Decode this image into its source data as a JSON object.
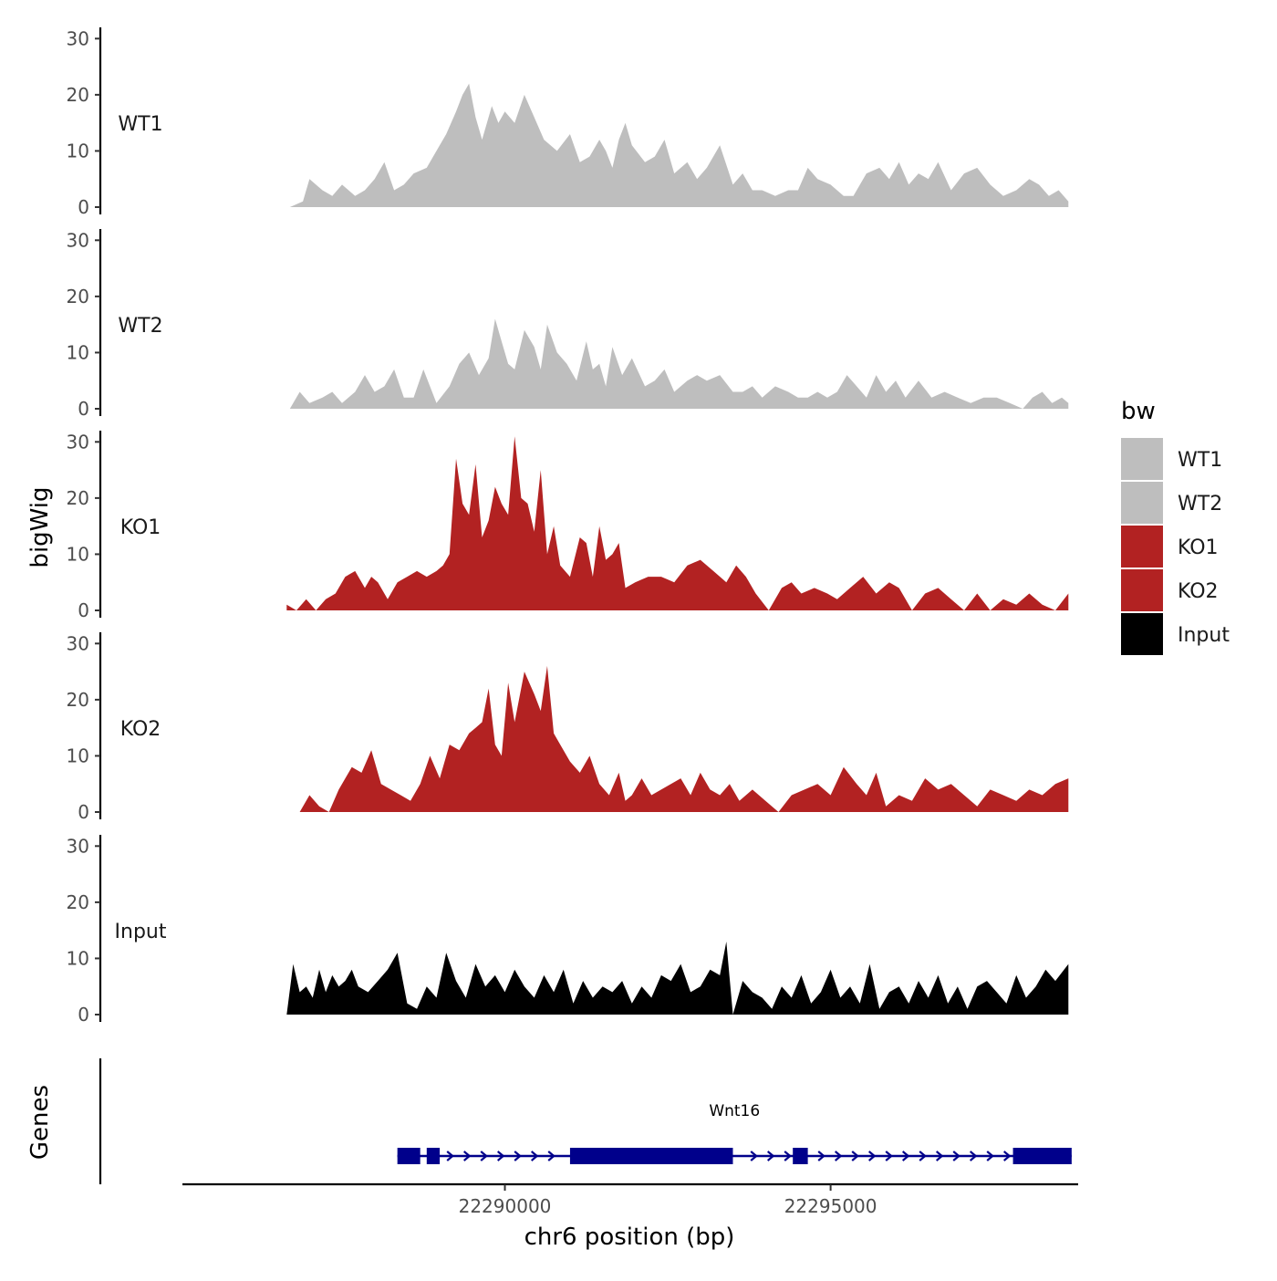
{
  "chart_data": {
    "type": "area",
    "title": "",
    "xlabel": "chr6 position (bp)",
    "ylabel": "bigWig",
    "genes_label": "Genes",
    "xlim": [
      22285050,
      22298800
    ],
    "ylim": [
      0,
      32
    ],
    "x_ticks": [
      22290000,
      22295000
    ],
    "x_tick_labels": [
      "22290000",
      "22295000"
    ],
    "y_ticks": [
      0,
      10,
      20,
      30
    ],
    "y_tick_labels": [
      "0",
      "10",
      "20",
      "30"
    ],
    "legend": {
      "title": "bw",
      "placement": "right",
      "entries": [
        {
          "label": "WT1",
          "color": "#bebebe"
        },
        {
          "label": "WT2",
          "color": "#bebebe"
        },
        {
          "label": "KO1",
          "color": "#b22222"
        },
        {
          "label": "KO2",
          "color": "#b22222"
        },
        {
          "label": "Input",
          "color": "#000000"
        }
      ]
    },
    "tracks": [
      {
        "name": "WT1",
        "color": "#bebebe",
        "x": [
          22286700,
          22286900,
          22287000,
          22287200,
          22287350,
          22287500,
          22287700,
          22287850,
          22288000,
          22288150,
          22288300,
          22288450,
          22288600,
          22288800,
          22288950,
          22289100,
          22289250,
          22289350,
          22289450,
          22289550,
          22289650,
          22289800,
          22289900,
          22290000,
          22290150,
          22290300,
          22290450,
          22290600,
          22290800,
          22291000,
          22291150,
          22291300,
          22291450,
          22291550,
          22291650,
          22291750,
          22291850,
          22291950,
          22292150,
          22292300,
          22292450,
          22292600,
          22292800,
          22292950,
          22293100,
          22293300,
          22293500,
          22293650,
          22293800,
          22293950,
          22294150,
          22294350,
          22294500,
          22294650,
          22294800,
          22295000,
          22295200,
          22295350,
          22295550,
          22295750,
          22295900,
          22296050,
          22296200,
          22296350,
          22296500,
          22296650,
          22296850,
          22297050,
          22297250,
          22297450,
          22297650,
          22297850,
          22298050,
          22298200,
          22298350,
          22298500,
          22298650
        ],
        "y": [
          0,
          1,
          5,
          3,
          2,
          4,
          2,
          3,
          5,
          8,
          3,
          4,
          6,
          7,
          10,
          13,
          17,
          20,
          22,
          16,
          12,
          18,
          15,
          17,
          15,
          20,
          16,
          12,
          10,
          13,
          8,
          9,
          12,
          10,
          7,
          12,
          15,
          11,
          8,
          9,
          12,
          6,
          8,
          5,
          7,
          11,
          4,
          6,
          3,
          3,
          2,
          3,
          3,
          7,
          5,
          4,
          2,
          2,
          6,
          7,
          5,
          8,
          4,
          6,
          5,
          8,
          3,
          6,
          7,
          4,
          2,
          3,
          5,
          4,
          2,
          3,
          1
        ],
        "ymax": 22.3
      },
      {
        "name": "WT2",
        "color": "#bebebe",
        "x": [
          22286700,
          22286850,
          22287000,
          22287200,
          22287350,
          22287500,
          22287700,
          22287850,
          22288000,
          22288150,
          22288300,
          22288450,
          22288600,
          22288750,
          22288950,
          22289150,
          22289300,
          22289450,
          22289600,
          22289750,
          22289850,
          22289950,
          22290050,
          22290150,
          22290300,
          22290450,
          22290550,
          22290650,
          22290800,
          22290950,
          22291100,
          22291250,
          22291350,
          22291450,
          22291550,
          22291650,
          22291800,
          22291950,
          22292150,
          22292300,
          22292450,
          22292600,
          22292800,
          22292950,
          22293100,
          22293300,
          22293500,
          22293650,
          22293800,
          22293950,
          22294150,
          22294350,
          22294500,
          22294650,
          22294800,
          22294950,
          22295100,
          22295250,
          22295400,
          22295550,
          22295700,
          22295850,
          22296000,
          22296150,
          22296350,
          22296550,
          22296750,
          22296950,
          22297150,
          22297350,
          22297550,
          22297750,
          22297950,
          22298100,
          22298250,
          22298400,
          22298550,
          22298650
        ],
        "y": [
          0,
          3,
          1,
          2,
          3,
          1,
          3,
          6,
          3,
          4,
          7,
          2,
          2,
          7,
          1,
          4,
          8,
          10,
          6,
          9,
          16,
          12,
          8,
          7,
          14,
          11,
          7,
          15,
          10,
          8,
          5,
          12,
          7,
          8,
          4,
          11,
          6,
          9,
          4,
          5,
          7,
          3,
          5,
          6,
          5,
          6,
          3,
          3,
          4,
          2,
          4,
          3,
          2,
          2,
          3,
          2,
          3,
          6,
          4,
          2,
          6,
          3,
          5,
          2,
          5,
          2,
          3,
          2,
          1,
          2,
          2,
          1,
          0,
          2,
          3,
          1,
          2,
          1
        ],
        "ymax": 16.4
      },
      {
        "name": "KO1",
        "color": "#b22222",
        "x": [
          22286650,
          22286800,
          22286950,
          22287100,
          22287250,
          22287400,
          22287550,
          22287700,
          22287850,
          22287950,
          22288050,
          22288200,
          22288350,
          22288500,
          22288650,
          22288800,
          22288950,
          22289050,
          22289150,
          22289250,
          22289350,
          22289450,
          22289550,
          22289650,
          22289750,
          22289850,
          22289950,
          22290050,
          22290150,
          22290250,
          22290350,
          22290450,
          22290550,
          22290650,
          22290750,
          22290850,
          22291000,
          22291150,
          22291250,
          22291350,
          22291450,
          22291550,
          22291650,
          22291750,
          22291850,
          22292000,
          22292200,
          22292400,
          22292600,
          22292800,
          22293000,
          22293200,
          22293400,
          22293550,
          22293700,
          22293850,
          22294050,
          22294250,
          22294400,
          22294550,
          22294750,
          22294950,
          22295100,
          22295300,
          22295500,
          22295700,
          22295900,
          22296050,
          22296250,
          22296450,
          22296650,
          22296850,
          22297050,
          22297250,
          22297450,
          22297650,
          22297850,
          22298050,
          22298250,
          22298450,
          22298650
        ],
        "y": [
          1,
          0,
          2,
          0,
          2,
          3,
          6,
          7,
          4,
          6,
          5,
          2,
          5,
          6,
          7,
          6,
          7,
          8,
          10,
          27,
          19,
          17,
          26,
          13,
          16,
          22,
          19,
          17,
          31,
          20,
          19,
          14,
          25,
          10,
          15,
          8,
          6,
          13,
          12,
          6,
          15,
          9,
          10,
          12,
          4,
          5,
          6,
          6,
          5,
          8,
          9,
          7,
          5,
          8,
          6,
          3,
          0,
          4,
          5,
          3,
          4,
          3,
          2,
          4,
          6,
          3,
          5,
          4,
          0,
          3,
          4,
          2,
          0,
          3,
          0,
          2,
          1,
          3,
          1,
          0,
          3
        ],
        "ymax": 30.8
      },
      {
        "name": "KO2",
        "color": "#b22222",
        "x": [
          22286850,
          22287000,
          22287150,
          22287300,
          22287450,
          22287650,
          22287800,
          22287950,
          22288100,
          22288250,
          22288400,
          22288550,
          22288700,
          22288850,
          22289000,
          22289150,
          22289300,
          22289450,
          22289550,
          22289650,
          22289750,
          22289850,
          22289950,
          22290050,
          22290150,
          22290300,
          22290450,
          22290550,
          22290650,
          22290750,
          22290850,
          22291000,
          22291150,
          22291300,
          22291450,
          22291600,
          22291750,
          22291850,
          22291950,
          22292100,
          22292250,
          22292400,
          22292550,
          22292700,
          22292850,
          22293000,
          22293150,
          22293300,
          22293450,
          22293600,
          22293800,
          22294000,
          22294200,
          22294400,
          22294600,
          22294800,
          22295000,
          22295200,
          22295400,
          22295550,
          22295700,
          22295850,
          22296050,
          22296250,
          22296450,
          22296650,
          22296850,
          22297050,
          22297250,
          22297450,
          22297650,
          22297850,
          22298050,
          22298250,
          22298450,
          22298650
        ],
        "y": [
          0,
          3,
          1,
          0,
          4,
          8,
          7,
          11,
          5,
          4,
          3,
          2,
          5,
          10,
          6,
          12,
          11,
          14,
          15,
          16,
          22,
          12,
          10,
          23,
          16,
          25,
          21,
          18,
          26,
          14,
          12,
          9,
          7,
          10,
          5,
          3,
          7,
          2,
          3,
          6,
          3,
          4,
          5,
          6,
          3,
          7,
          4,
          3,
          5,
          2,
          4,
          2,
          0,
          3,
          4,
          5,
          3,
          8,
          5,
          3,
          7,
          1,
          3,
          2,
          6,
          4,
          5,
          3,
          1,
          4,
          3,
          2,
          4,
          3,
          5,
          6
        ],
        "ymax": 26.5
      },
      {
        "name": "Input",
        "color": "#000000",
        "x": [
          22286650,
          22286750,
          22286850,
          22286950,
          22287050,
          22287150,
          22287250,
          22287350,
          22287450,
          22287550,
          22287650,
          22287750,
          22287900,
          22288050,
          22288200,
          22288350,
          22288500,
          22288650,
          22288800,
          22288950,
          22289100,
          22289250,
          22289400,
          22289550,
          22289700,
          22289850,
          22290000,
          22290150,
          22290300,
          22290450,
          22290600,
          22290750,
          22290900,
          22291050,
          22291200,
          22291350,
          22291500,
          22291650,
          22291800,
          22291950,
          22292100,
          22292250,
          22292400,
          22292550,
          22292700,
          22292850,
          22293000,
          22293150,
          22293300,
          22293400,
          22293500,
          22293650,
          22293800,
          22293950,
          22294100,
          22294250,
          22294400,
          22294550,
          22294700,
          22294850,
          22295000,
          22295150,
          22295300,
          22295450,
          22295600,
          22295750,
          22295900,
          22296050,
          22296200,
          22296350,
          22296500,
          22296650,
          22296800,
          22296950,
          22297100,
          22297250,
          22297400,
          22297550,
          22297700,
          22297850,
          22298000,
          22298150,
          22298300,
          22298450,
          22298650
        ],
        "y": [
          0,
          9,
          4,
          5,
          3,
          8,
          4,
          7,
          5,
          6,
          8,
          5,
          4,
          6,
          8,
          11,
          2,
          1,
          5,
          3,
          11,
          6,
          3,
          9,
          5,
          7,
          4,
          8,
          5,
          3,
          7,
          4,
          8,
          2,
          6,
          3,
          5,
          4,
          6,
          2,
          5,
          3,
          7,
          6,
          9,
          4,
          5,
          8,
          7,
          13,
          0,
          6,
          4,
          3,
          1,
          5,
          3,
          7,
          2,
          4,
          8,
          3,
          5,
          2,
          9,
          1,
          4,
          5,
          2,
          6,
          3,
          7,
          2,
          5,
          1,
          5,
          6,
          4,
          2,
          7,
          3,
          5,
          8,
          6,
          9
        ],
        "ymax": 13.2
      }
    ],
    "gene": {
      "name": "Wnt16",
      "strand": "+",
      "start": 22288350,
      "end": 22298700,
      "exons": [
        {
          "start": 22288350,
          "end": 22288700
        },
        {
          "start": 22288800,
          "end": 22289000
        },
        {
          "start": 22291000,
          "end": 22293500
        },
        {
          "start": 22294420,
          "end": 22294650
        },
        {
          "start": 22297800,
          "end": 22298700
        }
      ]
    }
  }
}
